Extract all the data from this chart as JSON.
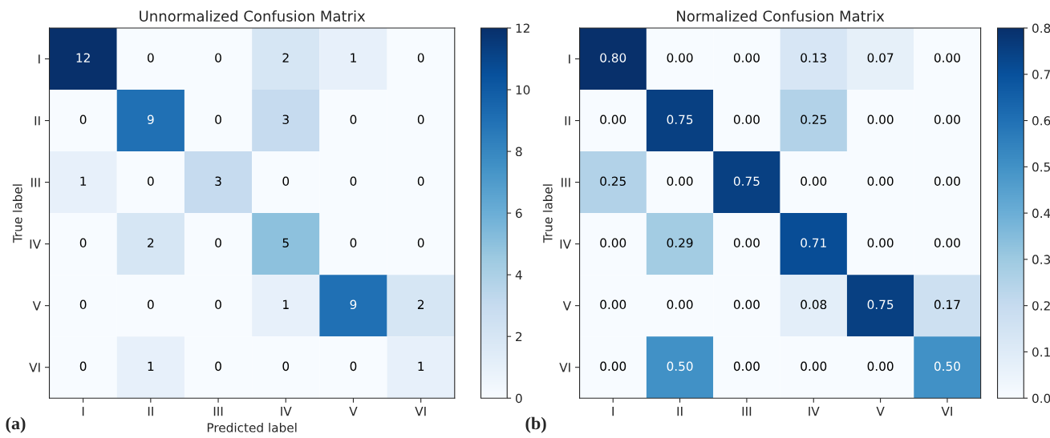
{
  "chart_data": [
    {
      "type": "heatmap",
      "title": "Unnormalized Confusion Matrix",
      "xlabel": "Predicted label",
      "ylabel": "True label",
      "categories": [
        "I",
        "II",
        "III",
        "IV",
        "V",
        "VI"
      ],
      "y_categories": [
        "I",
        "II",
        "III",
        "IV",
        "V",
        "VI"
      ],
      "cells": [
        [
          12,
          0,
          0,
          2,
          1,
          0
        ],
        [
          0,
          9,
          0,
          3,
          0,
          0
        ],
        [
          1,
          0,
          3,
          0,
          0,
          0
        ],
        [
          0,
          2,
          0,
          5,
          0,
          0
        ],
        [
          0,
          0,
          0,
          1,
          9,
          2
        ],
        [
          0,
          1,
          0,
          0,
          0,
          1
        ]
      ],
      "clim": [
        0,
        12
      ],
      "cticks": [
        0,
        2,
        4,
        6,
        8,
        10,
        12
      ],
      "data_labels": true,
      "annotations": [
        "(a)"
      ]
    },
    {
      "type": "heatmap",
      "title": "Normalized Confusion Matrix",
      "ylabel": "True label",
      "categories": [
        "I",
        "II",
        "III",
        "IV",
        "V",
        "VI"
      ],
      "y_categories": [
        "I",
        "II",
        "III",
        "IV",
        "V",
        "VI"
      ],
      "cells": [
        [
          0.8,
          0.0,
          0.0,
          0.13,
          0.07,
          0.0
        ],
        [
          0.0,
          0.75,
          0.0,
          0.25,
          0.0,
          0.0
        ],
        [
          0.25,
          0.0,
          0.75,
          0.0,
          0.0,
          0.0
        ],
        [
          0.0,
          0.29,
          0.0,
          0.71,
          0.0,
          0.0
        ],
        [
          0.0,
          0.0,
          0.0,
          0.08,
          0.75,
          0.17
        ],
        [
          0.0,
          0.5,
          0.0,
          0.0,
          0.0,
          0.5
        ]
      ],
      "cell_labels": [
        [
          "0.80",
          "0.00",
          "0.00",
          "0.13",
          "0.07",
          "0.00"
        ],
        [
          "0.00",
          "0.75",
          "0.00",
          "0.25",
          "0.00",
          "0.00"
        ],
        [
          "0.25",
          "0.00",
          "0.75",
          "0.00",
          "0.00",
          "0.00"
        ],
        [
          "0.00",
          "0.29",
          "0.00",
          "0.71",
          "0.00",
          "0.00"
        ],
        [
          "0.00",
          "0.00",
          "0.00",
          "0.08",
          "0.75",
          "0.17"
        ],
        [
          "0.00",
          "0.50",
          "0.00",
          "0.00",
          "0.00",
          "0.50"
        ]
      ],
      "clim": [
        0,
        0.8
      ],
      "cticks": [
        {
          "value": 0,
          "label": "0.0"
        },
        {
          "value": 0.1,
          "label": "0.1"
        },
        {
          "value": 0.2,
          "label": "0.2"
        },
        {
          "value": 0.3,
          "label": "0.3"
        },
        {
          "value": 0.4,
          "label": "0.4"
        },
        {
          "value": 0.5,
          "label": "0.5"
        },
        {
          "value": 0.6,
          "label": "0.6"
        },
        {
          "value": 0.7,
          "label": "0.7"
        },
        {
          "value": 0.8,
          "label": "0.8"
        }
      ],
      "annotations": [
        "(b)"
      ]
    }
  ]
}
